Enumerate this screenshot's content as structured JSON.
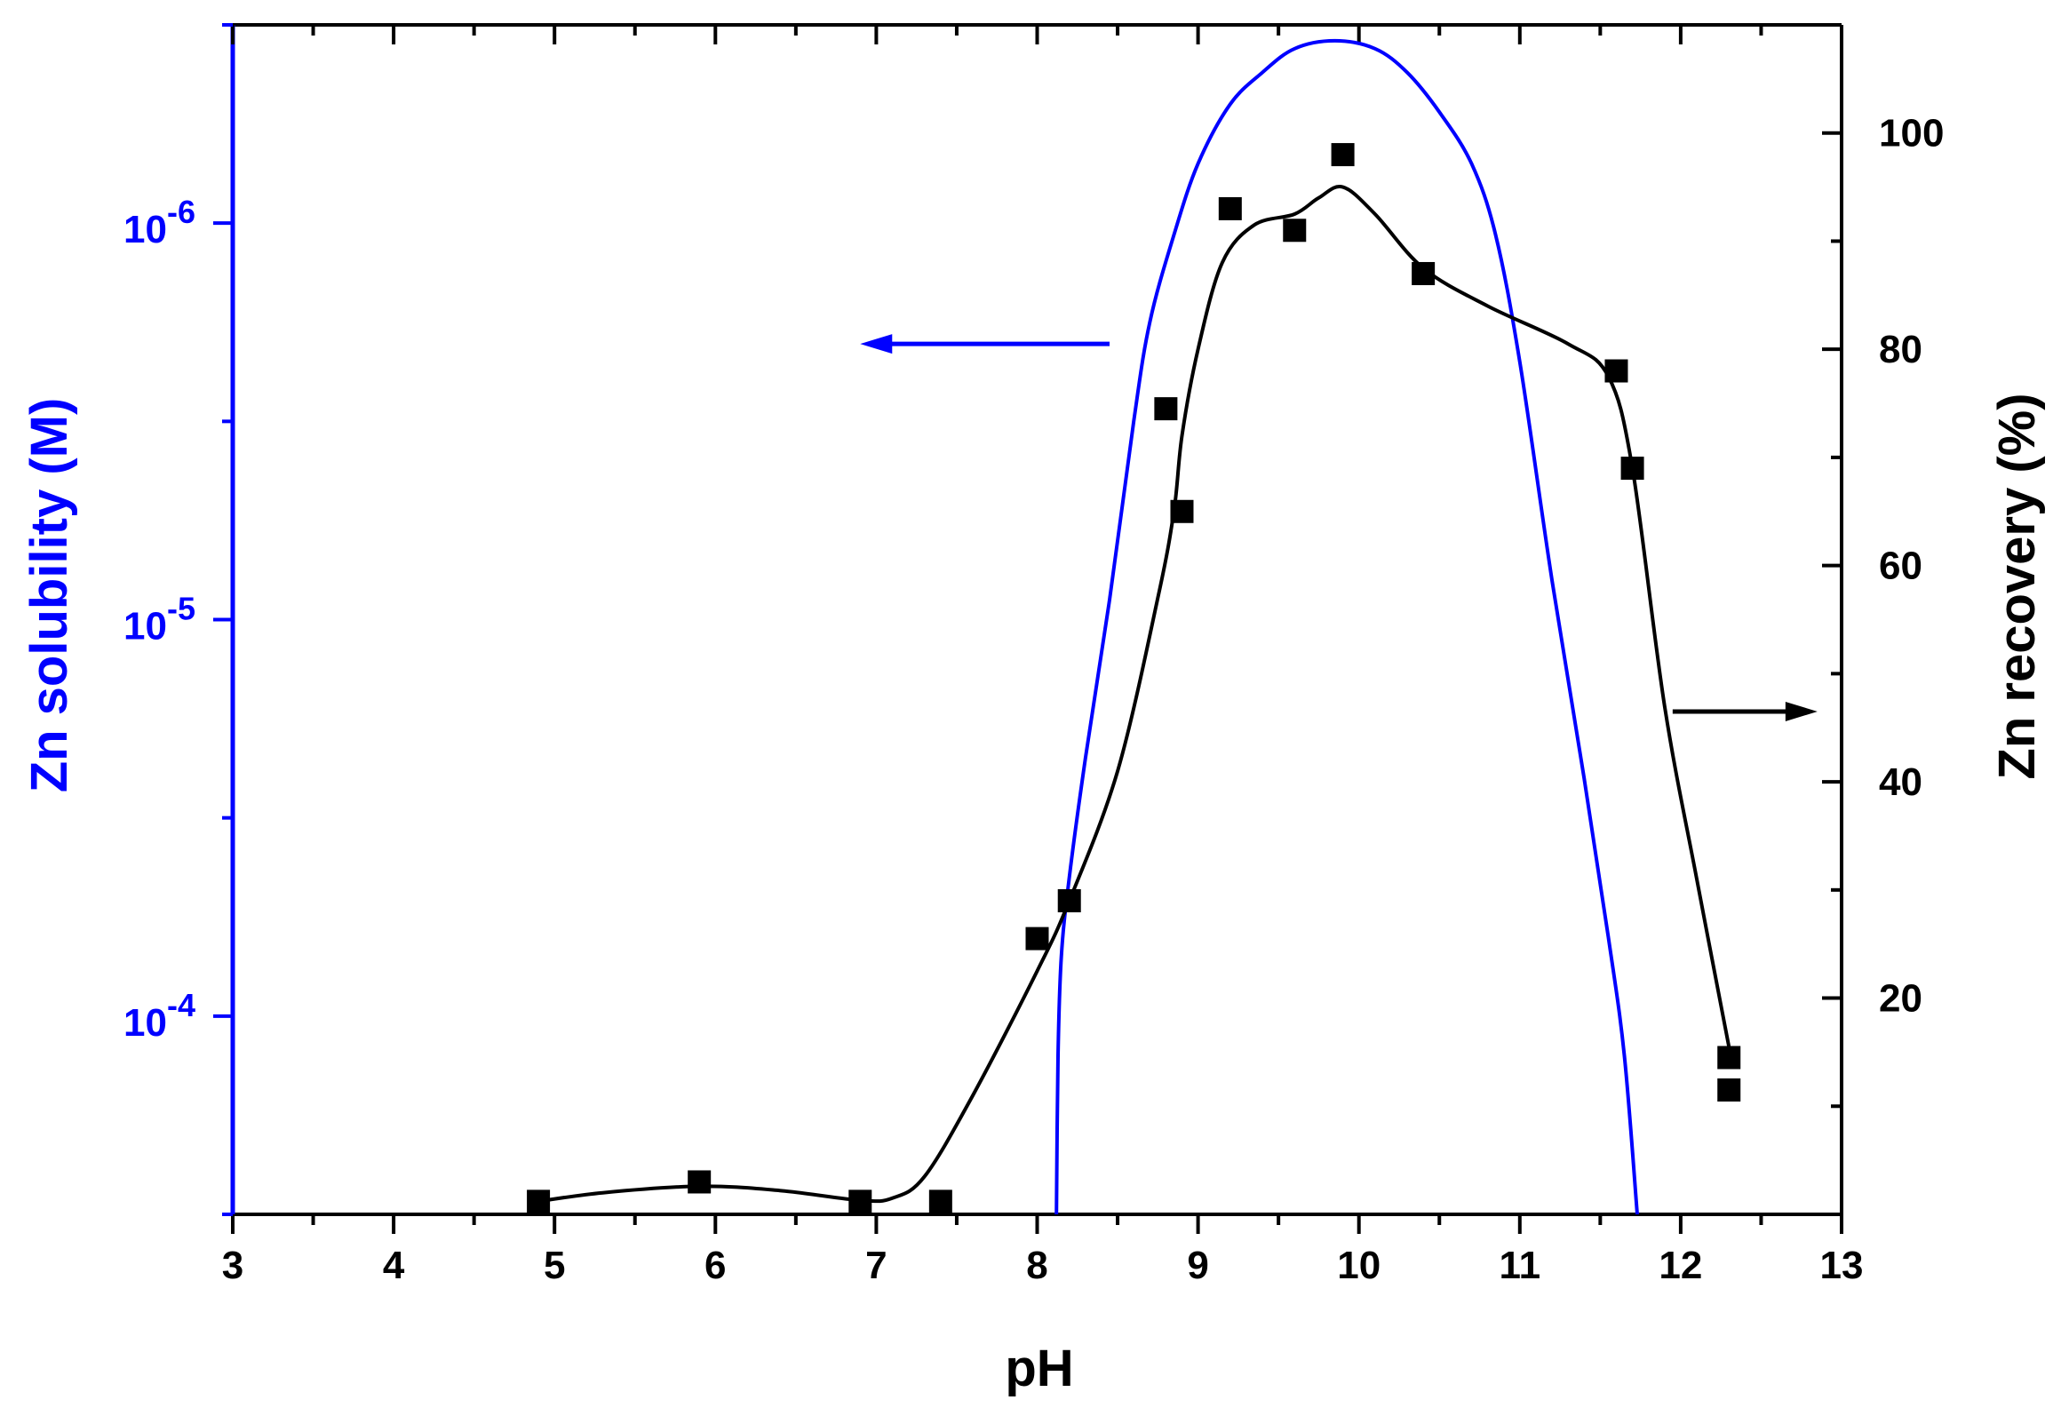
{
  "chart_data": {
    "type": "scatter",
    "x_axis": {
      "label": "pH",
      "range": [
        3,
        13
      ],
      "major_ticks": [
        3,
        4,
        5,
        6,
        7,
        8,
        9,
        10,
        11,
        12,
        13
      ],
      "tick_labels": [
        "3",
        "4",
        "5",
        "6",
        "7",
        "8",
        "9",
        "10",
        "11",
        "12",
        "13"
      ]
    },
    "y_left": {
      "label": "Zn solubility (M)",
      "color": "#0000ff",
      "scale": "log",
      "inverted": true,
      "ticks": [
        {
          "value": 1e-06,
          "base": "10",
          "exp": "-6"
        },
        {
          "value": 1e-05,
          "base": "10",
          "exp": "-5"
        },
        {
          "value": 0.0001,
          "base": "10",
          "exp": "-4"
        }
      ],
      "range_log10": [
        -6.5,
        -3.5
      ]
    },
    "y_right": {
      "label": "Zn recovery (%)",
      "color": "#000000",
      "range": [
        0,
        110
      ],
      "major_ticks": [
        20,
        40,
        60,
        80,
        100
      ],
      "tick_labels": [
        "20",
        "40",
        "60",
        "80",
        "100"
      ]
    },
    "series": [
      {
        "axis": "right",
        "color": "#000000",
        "marker": "square",
        "points": [
          [
            4.9,
            1.2
          ],
          [
            5.9,
            3.0
          ],
          [
            6.9,
            1.2
          ],
          [
            7.4,
            1.2
          ],
          [
            8.0,
            25.5
          ],
          [
            8.2,
            29
          ],
          [
            8.8,
            74.5
          ],
          [
            8.9,
            65
          ],
          [
            9.2,
            93
          ],
          [
            9.6,
            91
          ],
          [
            9.9,
            98
          ],
          [
            10.4,
            87
          ],
          [
            11.6,
            78
          ],
          [
            11.7,
            69
          ],
          [
            12.3,
            14.5
          ],
          [
            12.3,
            11.5
          ]
        ],
        "fit_curve": [
          [
            4.9,
            1.2
          ],
          [
            5.3,
            2.0
          ],
          [
            5.9,
            2.6
          ],
          [
            6.4,
            2.2
          ],
          [
            6.9,
            1.3
          ],
          [
            7.1,
            1.5
          ],
          [
            7.3,
            3.5
          ],
          [
            7.6,
            11
          ],
          [
            8.0,
            22.5
          ],
          [
            8.2,
            29
          ],
          [
            8.5,
            41
          ],
          [
            8.75,
            57
          ],
          [
            8.85,
            65
          ],
          [
            8.9,
            72
          ],
          [
            9.0,
            80
          ],
          [
            9.15,
            88
          ],
          [
            9.35,
            91.5
          ],
          [
            9.6,
            92.5
          ],
          [
            9.75,
            94
          ],
          [
            9.9,
            95
          ],
          [
            10.1,
            92.5
          ],
          [
            10.4,
            87.5
          ],
          [
            10.8,
            84
          ],
          [
            11.3,
            80.5
          ],
          [
            11.55,
            77.5
          ],
          [
            11.7,
            69
          ],
          [
            11.9,
            47
          ],
          [
            12.1,
            31
          ],
          [
            12.3,
            15.5
          ]
        ]
      },
      {
        "axis": "left",
        "color": "#0000ff",
        "marker": "none",
        "curve_log10": [
          [
            8.12,
            -3.5
          ],
          [
            8.13,
            -3.9
          ],
          [
            8.15,
            -4.15
          ],
          [
            8.2,
            -4.35
          ],
          [
            8.3,
            -4.65
          ],
          [
            8.45,
            -5.05
          ],
          [
            8.6,
            -5.5
          ],
          [
            8.7,
            -5.75
          ],
          [
            8.85,
            -5.97
          ],
          [
            9.0,
            -6.15
          ],
          [
            9.2,
            -6.3
          ],
          [
            9.4,
            -6.38
          ],
          [
            9.6,
            -6.44
          ],
          [
            9.85,
            -6.46
          ],
          [
            10.1,
            -6.44
          ],
          [
            10.3,
            -6.38
          ],
          [
            10.5,
            -6.28
          ],
          [
            10.7,
            -6.15
          ],
          [
            10.85,
            -5.97
          ],
          [
            11.0,
            -5.65
          ],
          [
            11.2,
            -5.1
          ],
          [
            11.4,
            -4.6
          ],
          [
            11.55,
            -4.2
          ],
          [
            11.65,
            -3.9
          ],
          [
            11.73,
            -3.5
          ]
        ]
      }
    ],
    "annotations": [
      {
        "type": "arrow",
        "color": "#0000ff",
        "direction": "left",
        "from": [
          8.45,
          80.5
        ],
        "to": [
          6.9,
          80.5
        ]
      },
      {
        "type": "arrow",
        "color": "#000000",
        "direction": "right",
        "from": [
          11.95,
          46.5
        ],
        "to": [
          12.85,
          46.5
        ]
      }
    ],
    "grid": false,
    "legend": "none"
  }
}
